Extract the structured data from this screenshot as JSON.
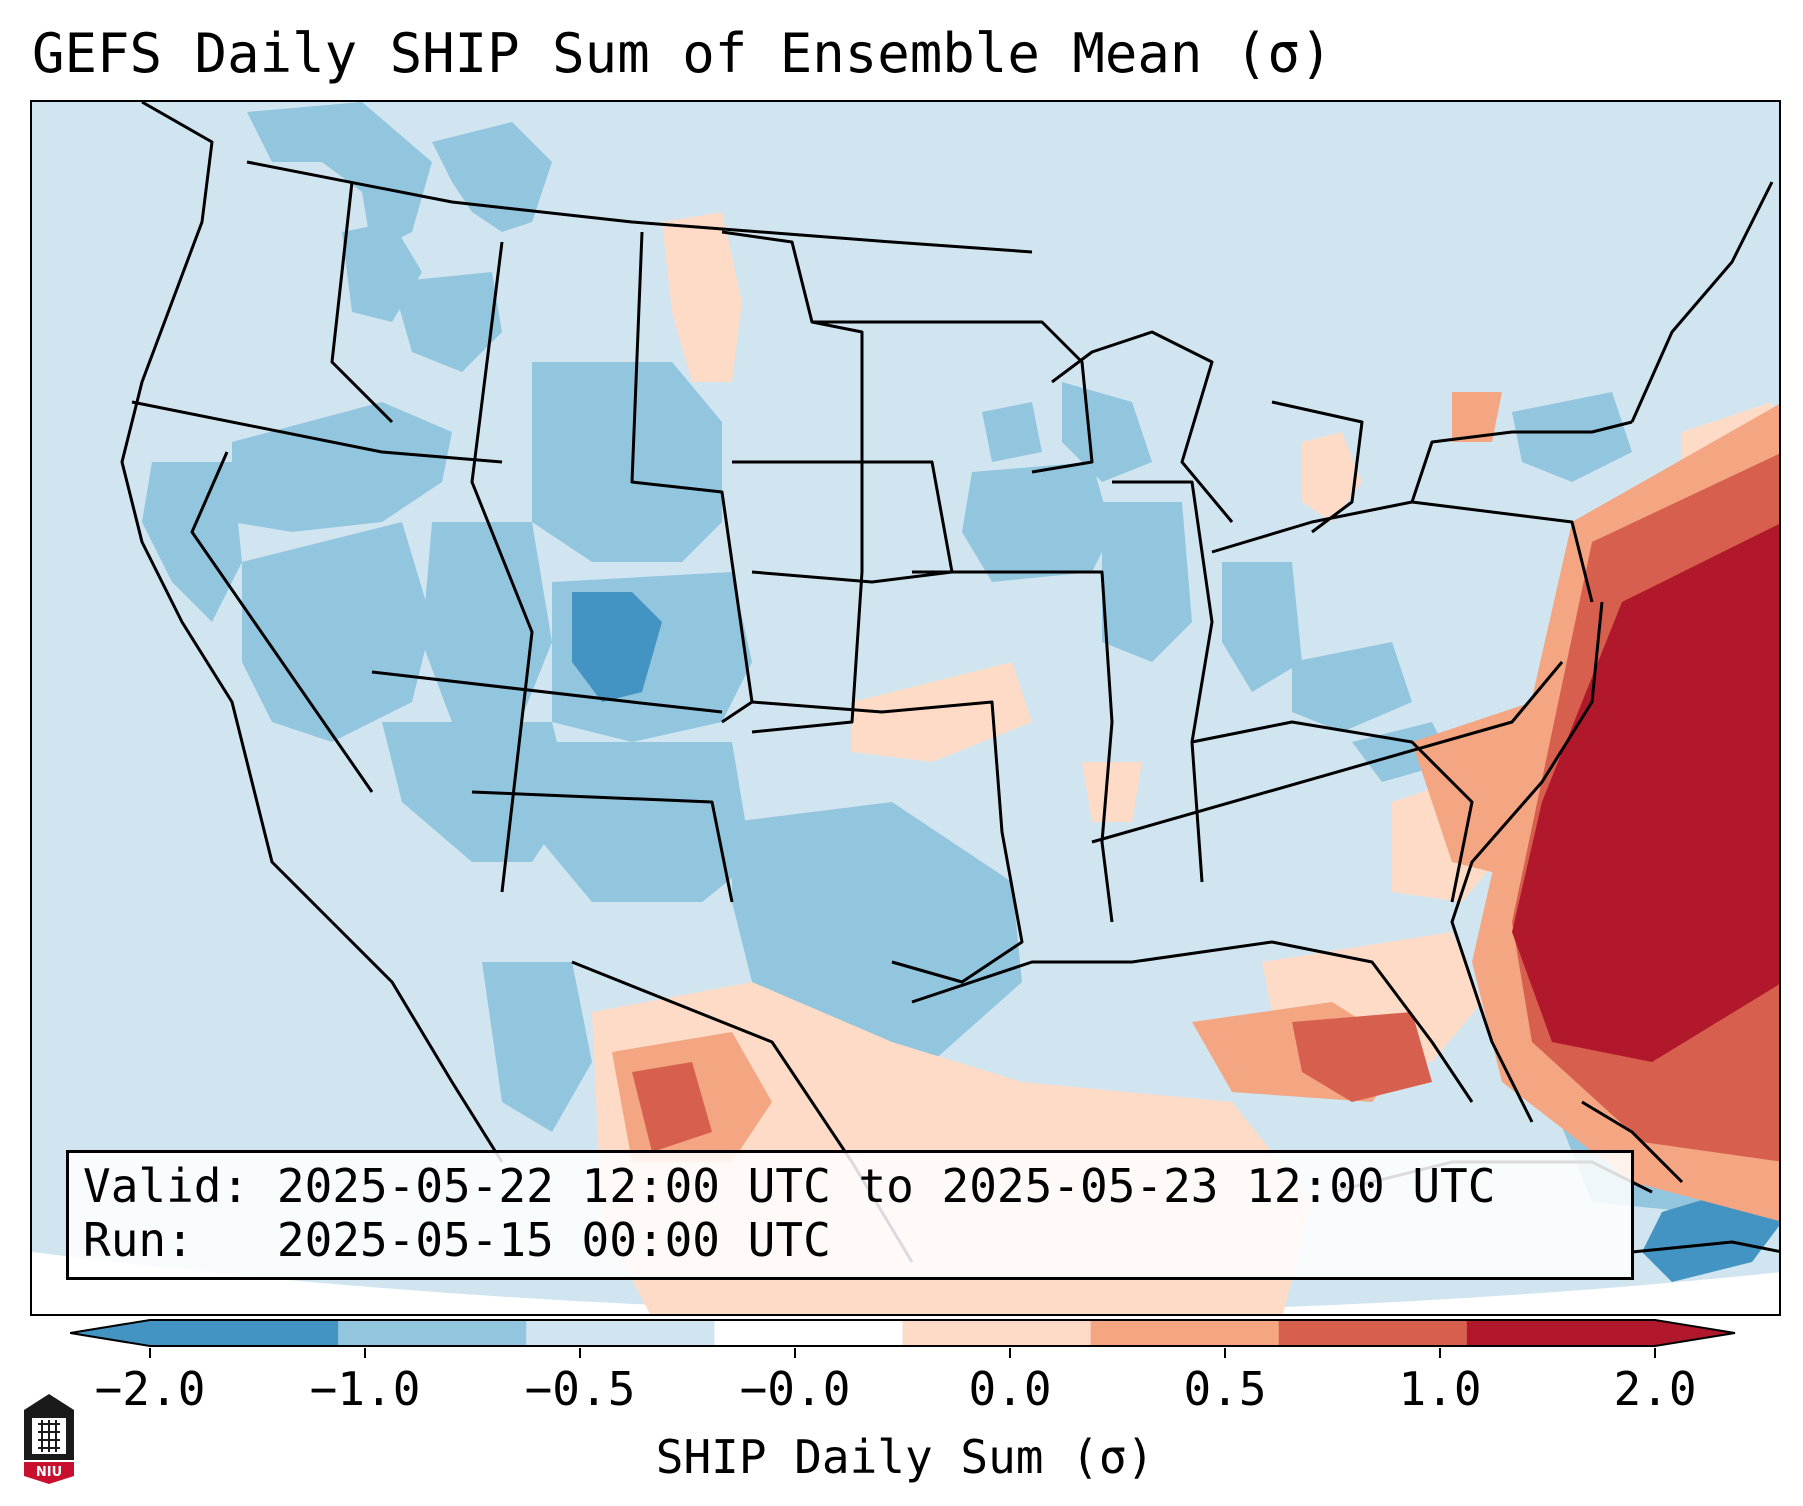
{
  "title": "GEFS Daily SHIP Sum of Ensemble Mean (σ)",
  "info": {
    "valid_label": "Valid:",
    "valid_text": "2025-05-22 12:00 UTC to 2025-05-23 12:00 UTC",
    "run_label": "Run:",
    "run_text": "2025-05-15 00:00 UTC"
  },
  "colorbar": {
    "label": "SHIP Daily Sum (σ)",
    "ticks": [
      "−2.0",
      "−1.0",
      "−0.5",
      "−0.0",
      "0.0",
      "0.5",
      "1.0",
      "2.0"
    ],
    "colors": [
      "#4393c3",
      "#92c5de",
      "#d1e5f0",
      "#ffffff",
      "#fddbc7",
      "#f4a582",
      "#d6604d",
      "#b2182b"
    ]
  },
  "logo": {
    "text": "NIU",
    "icon": "niu-logo-icon"
  }
}
